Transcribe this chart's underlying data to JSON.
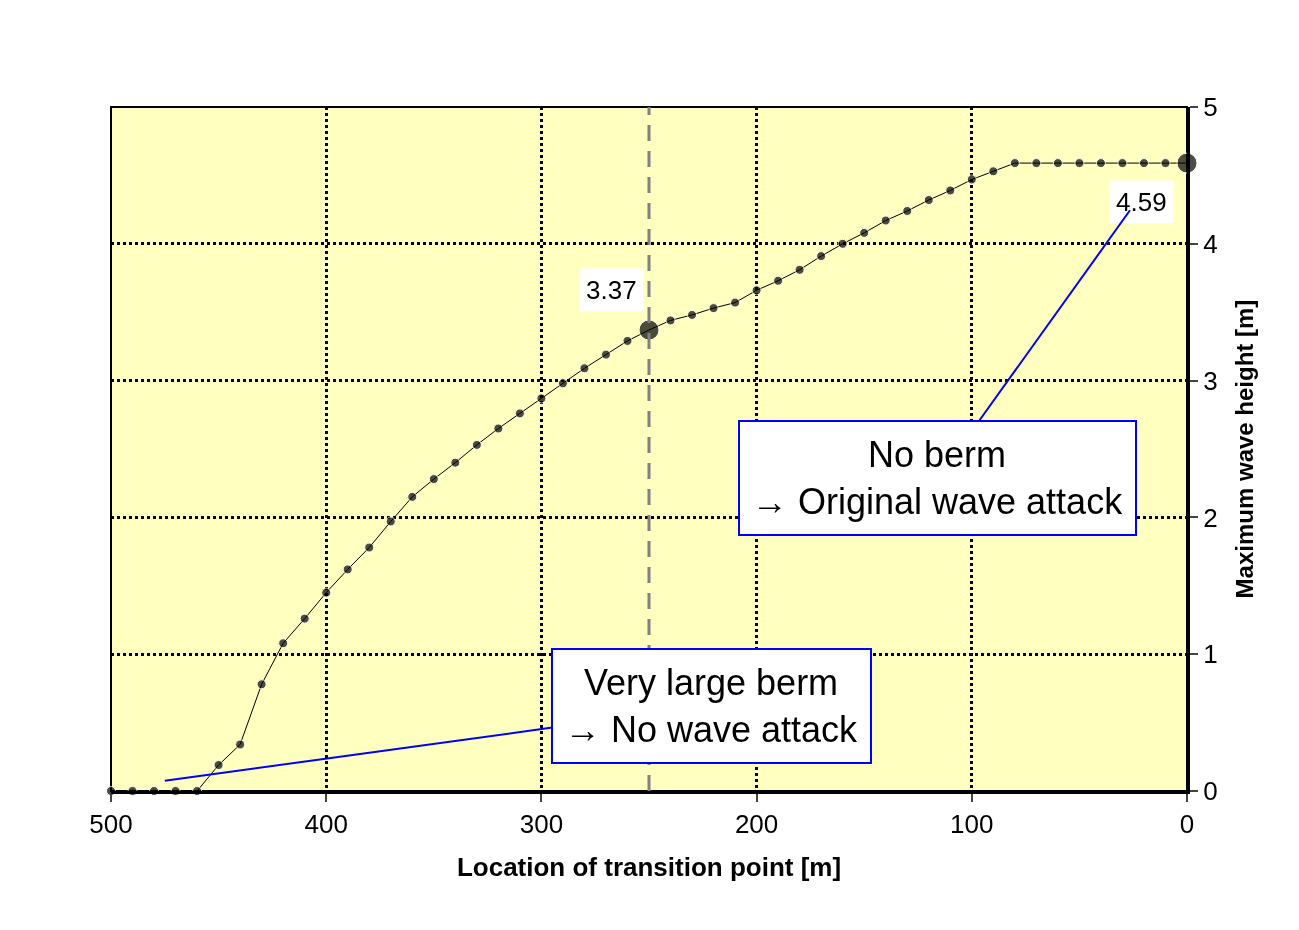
{
  "chart_data": {
    "type": "line",
    "xlabel": "Location of transition point [m]",
    "ylabel": "Maximum wave height [m]",
    "x": [
      500,
      490,
      480,
      470,
      460,
      450,
      440,
      430,
      420,
      410,
      400,
      390,
      380,
      370,
      360,
      350,
      340,
      330,
      320,
      310,
      300,
      290,
      280,
      270,
      260,
      250,
      240,
      230,
      220,
      210,
      200,
      190,
      180,
      170,
      160,
      150,
      140,
      130,
      120,
      110,
      100,
      90,
      80,
      70,
      60,
      50,
      40,
      30,
      20,
      10,
      0
    ],
    "series": [
      {
        "color": "#000000",
        "values": [
          0,
          0,
          0,
          0,
          0,
          0.19,
          0.34,
          0.78,
          1.08,
          1.26,
          1.45,
          1.62,
          1.78,
          1.97,
          2.15,
          2.28,
          2.4,
          2.53,
          2.65,
          2.76,
          2.87,
          2.98,
          3.09,
          3.19,
          3.29,
          3.37,
          3.44,
          3.48,
          3.53,
          3.57,
          3.66,
          3.73,
          3.81,
          3.91,
          4.0,
          4.08,
          4.17,
          4.24,
          4.32,
          4.39,
          4.47,
          4.53,
          4.59,
          4.59,
          4.59,
          4.59,
          4.59,
          4.59,
          4.59,
          4.59,
          4.59
        ]
      }
    ],
    "xlim": [
      500,
      0
    ],
    "xticks": [
      500,
      400,
      300,
      200,
      100,
      0
    ],
    "ylim": [
      0,
      5
    ],
    "yticks": [
      0,
      1,
      2,
      3,
      4,
      5
    ],
    "grid": true,
    "legend": false,
    "marker": "circle",
    "line_style": "solid",
    "ref_lines": [
      {
        "axis": "x",
        "value": 250,
        "color": "#808080",
        "line_style": "dashed"
      }
    ],
    "annotations": [
      {
        "text": "3.37",
        "x": 250,
        "y": 3.37
      },
      {
        "text": "4.59",
        "x": 0,
        "y": 4.59
      },
      "Very large berm\n→ No wave attack",
      "No berm\n→ Original wave attack"
    ]
  }
}
